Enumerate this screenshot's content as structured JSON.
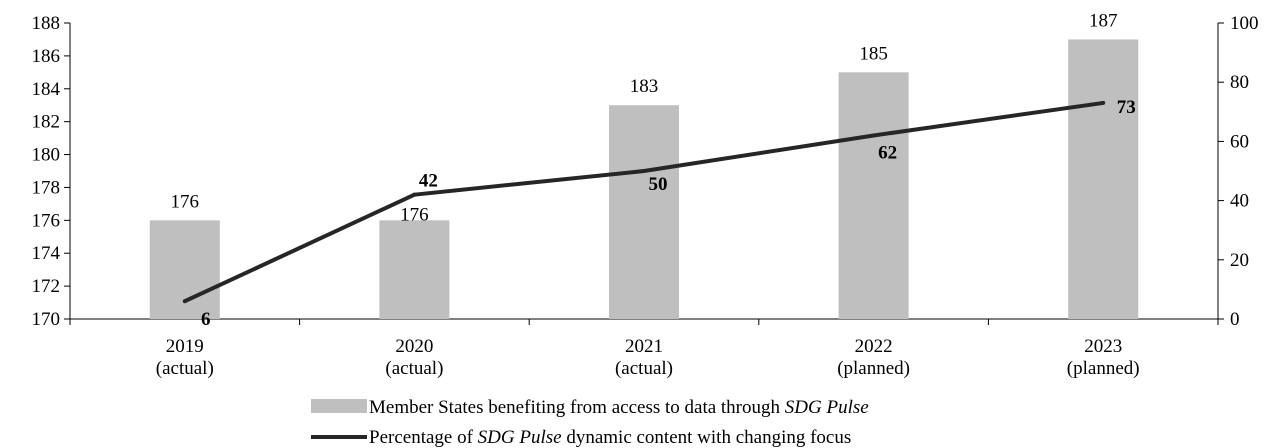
{
  "chart_data": {
    "type": "bar+line",
    "categories": [
      [
        "2019",
        "(actual)"
      ],
      [
        "2020",
        "(actual)"
      ],
      [
        "2021",
        "(actual)"
      ],
      [
        "2022",
        "(planned)"
      ],
      [
        "2023",
        "(planned)"
      ]
    ],
    "series": [
      {
        "type": "bar",
        "axis": "left",
        "values": [
          176,
          176,
          183,
          185,
          187
        ],
        "color": "#bfbfbf",
        "legend": [
          "Member States benefiting from access to data through ",
          "SDG Pulse",
          ""
        ]
      },
      {
        "type": "line",
        "axis": "right",
        "values": [
          6,
          42,
          50,
          62,
          73
        ],
        "color": "#262626",
        "legend": [
          "Percentage of ",
          "SDG Pulse",
          " dynamic content with changing focus"
        ]
      }
    ],
    "y_left": {
      "min": 170,
      "max": 188,
      "ticks": [
        170,
        172,
        174,
        176,
        178,
        180,
        182,
        184,
        186,
        188
      ]
    },
    "y_right": {
      "min": 0,
      "max": 100,
      "ticks": [
        0,
        20,
        40,
        60,
        80,
        100
      ]
    },
    "grid": false,
    "legend_position": "bottom"
  }
}
